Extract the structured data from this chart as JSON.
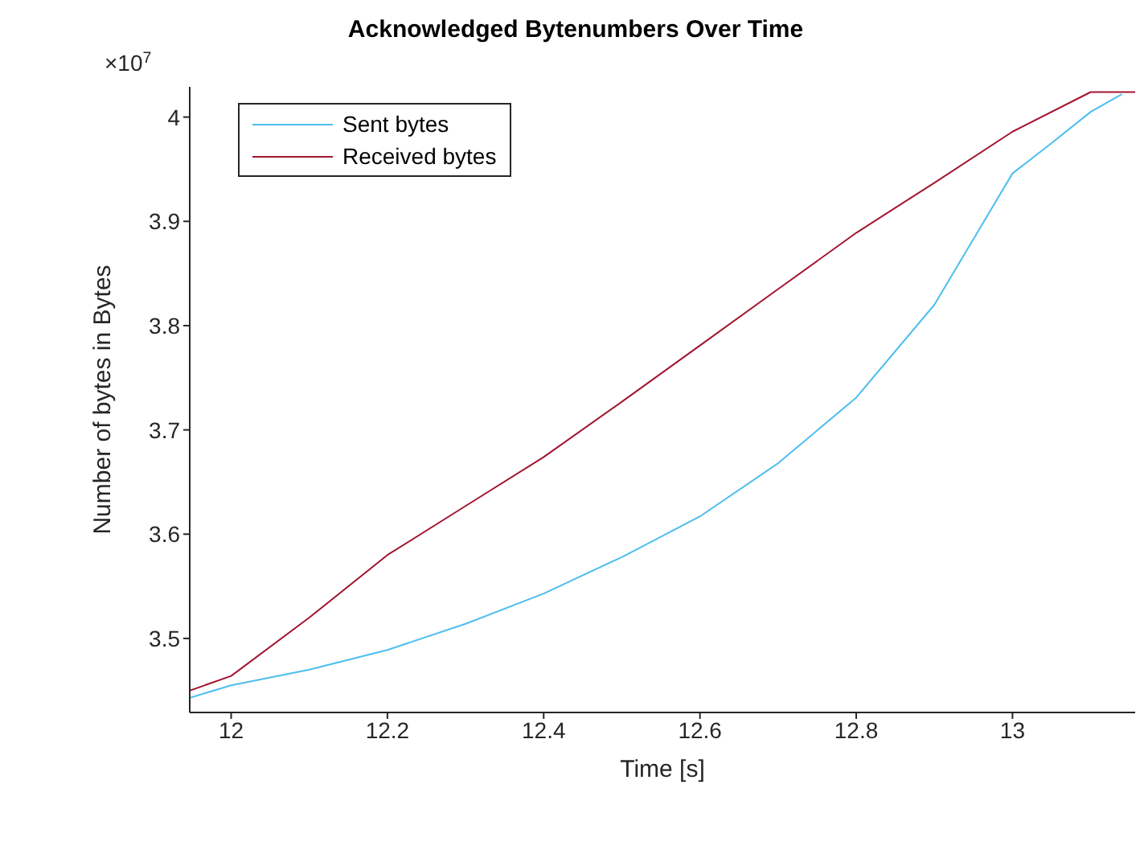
{
  "chart_data": {
    "type": "line",
    "title": "Acknowledged Bytenumbers Over Time",
    "xlabel": "Time [s]",
    "ylabel": "Number of bytes in Bytes",
    "annotations": [
      "×10$^{7}$"
    ],
    "xlim": [
      11.947,
      13.157
    ],
    "xticks": [
      12,
      12.2,
      12.4,
      12.6,
      12.8,
      13
    ],
    "ylim": [
      3.429,
      4.029
    ],
    "yticks": [
      3.5,
      3.6,
      3.7,
      3.8,
      3.9,
      4
    ],
    "legend": "top left",
    "grid": false,
    "series": [
      {
        "name": "Sent bytes",
        "color": "#4dbeee",
        "x": [
          11.947,
          12.0,
          12.1,
          12.2,
          12.3,
          12.4,
          12.5,
          12.6,
          12.7,
          12.8,
          12.9,
          13.0,
          13.05,
          13.1,
          13.14
        ],
        "values": [
          3.443,
          3.455,
          3.47,
          3.489,
          3.514,
          3.543,
          3.578,
          3.617,
          3.668,
          3.731,
          3.82,
          3.946,
          3.975,
          4.005,
          4.022
        ]
      },
      {
        "name": "Received bytes",
        "color": "#a2142f",
        "x": [
          11.947,
          12.0,
          12.1,
          12.2,
          12.3,
          12.4,
          12.5,
          12.6,
          12.7,
          12.8,
          12.9,
          13.0,
          13.1,
          13.157
        ],
        "values": [
          3.45,
          3.464,
          3.52,
          3.58,
          3.627,
          3.674,
          3.727,
          3.781,
          3.835,
          3.889,
          3.937,
          3.986,
          4.024,
          4.024
        ]
      }
    ]
  }
}
